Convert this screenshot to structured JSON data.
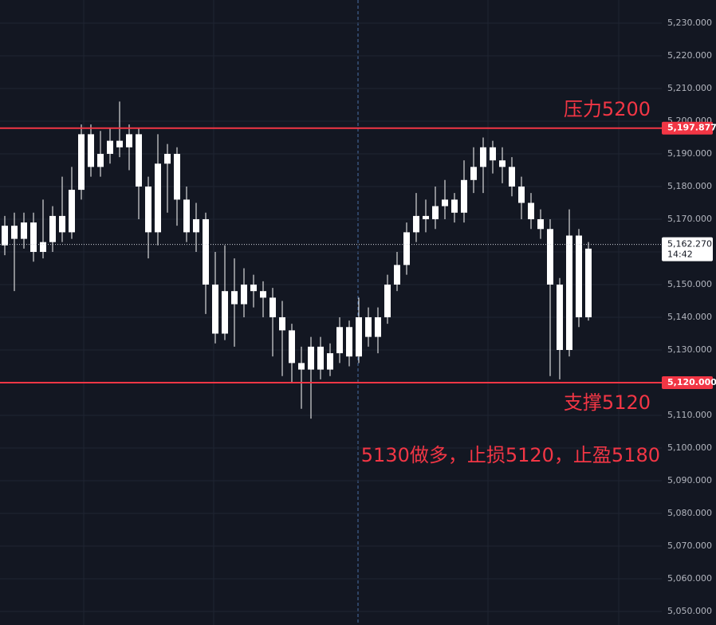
{
  "chart_data": {
    "type": "candlestick",
    "color": "#ffffff",
    "open": [
      5162,
      5168,
      5164,
      5169,
      5160,
      5163,
      5171,
      5166,
      5179,
      5196,
      5186,
      5190,
      5194,
      5192,
      5196,
      5180,
      5166,
      5187,
      5190,
      5176,
      5166,
      5170,
      5150,
      5135,
      5148,
      5144,
      5150,
      5148,
      5146,
      5140,
      5136,
      5126,
      5124,
      5131,
      5124,
      5129,
      5137,
      5128,
      5140,
      5134,
      5140,
      5150,
      5156,
      5166,
      5171,
      5170,
      5174,
      5176,
      5172,
      5182,
      5186,
      5192,
      5188,
      5186,
      5180,
      5175,
      5170,
      5167,
      5150,
      5130,
      5165,
      5140
    ],
    "high": [
      5171,
      5172,
      5172,
      5172,
      5176,
      5174,
      5183,
      5186,
      5199,
      5199,
      5197,
      5198,
      5206,
      5199,
      5198,
      5183,
      5196,
      5193,
      5192,
      5180,
      5175,
      5172,
      5160,
      5162,
      5158,
      5155,
      5153,
      5151,
      5149,
      5145,
      5138,
      5131,
      5134,
      5134,
      5132,
      5140,
      5139,
      5146,
      5143,
      5143,
      5153,
      5160,
      5169,
      5178,
      5176,
      5180,
      5182,
      5178,
      5188,
      5192,
      5195,
      5194,
      5192,
      5189,
      5183,
      5178,
      5173,
      5170,
      5152,
      5173,
      5167,
      5163
    ],
    "low": [
      5159,
      5148,
      5161,
      5157,
      5158,
      5160,
      5163,
      5164,
      5176,
      5183,
      5183,
      5187,
      5189,
      5185,
      5170,
      5158,
      5162,
      5172,
      5168,
      5163,
      5160,
      5141,
      5132,
      5133,
      5131,
      5140,
      5143,
      5140,
      5128,
      5122,
      5120,
      5112,
      5109,
      5121,
      5122,
      5126,
      5125,
      5126,
      5131,
      5129,
      5138,
      5148,
      5153,
      5163,
      5166,
      5167,
      5170,
      5169,
      5169,
      5178,
      5178,
      5184,
      5181,
      5177,
      5170,
      5167,
      5164,
      5122,
      5121,
      5128,
      5137,
      5139
    ],
    "close": [
      5168,
      5164,
      5169,
      5160,
      5163,
      5171,
      5166,
      5179,
      5196,
      5186,
      5190,
      5194,
      5192,
      5196,
      5180,
      5166,
      5187,
      5190,
      5176,
      5166,
      5170,
      5150,
      5135,
      5148,
      5144,
      5150,
      5148,
      5146,
      5140,
      5136,
      5126,
      5124,
      5131,
      5124,
      5129,
      5137,
      5128,
      5140,
      5134,
      5140,
      5150,
      5156,
      5166,
      5171,
      5170,
      5174,
      5176,
      5172,
      5182,
      5186,
      5192,
      5188,
      5186,
      5180,
      5175,
      5170,
      5167,
      5150,
      5130,
      5165,
      5140,
      5161
    ],
    "ylim": [
      5045.85,
      5237.07
    ],
    "yticks": [
      {
        "value": 5050,
        "label": "5,050.000"
      },
      {
        "value": 5060,
        "label": "5,060.000"
      },
      {
        "value": 5070,
        "label": "5,070.000"
      },
      {
        "value": 5080,
        "label": "5,080.000"
      },
      {
        "value": 5090,
        "label": "5,090.000"
      },
      {
        "value": 5100,
        "label": "5,100.000"
      },
      {
        "value": 5110,
        "label": "5,110.000"
      },
      {
        "value": 5120,
        "label": "5,120.000"
      },
      {
        "value": 5130,
        "label": "5,130.000"
      },
      {
        "value": 5140,
        "label": "5,140.000"
      },
      {
        "value": 5150,
        "label": "5,150.000"
      },
      {
        "value": 5160,
        "label": "5,160.000"
      },
      {
        "value": 5170,
        "label": "5,170.000"
      },
      {
        "value": 5180,
        "label": "5,180.000"
      },
      {
        "value": 5190,
        "label": "5,190.000"
      },
      {
        "value": 5200,
        "label": "5,200.000"
      },
      {
        "value": 5210,
        "label": "5,210.000"
      },
      {
        "value": 5220,
        "label": "5,220.000"
      },
      {
        "value": 5230,
        "label": "5,230.000"
      }
    ],
    "grid": true,
    "horizontal_lines": [
      {
        "value": 5197.877,
        "label": "5,197.877",
        "color": "#f23645"
      },
      {
        "value": 5120,
        "label": "5,120.000",
        "color": "#f23645"
      }
    ],
    "current_price": {
      "value": 5162.27,
      "label": "5,162.270",
      "time": "14:42"
    },
    "annotations": [
      "压力5200",
      "支撑5120",
      "5130做多，止损5120，止盈5180"
    ],
    "annotation_color": "#f23645"
  }
}
